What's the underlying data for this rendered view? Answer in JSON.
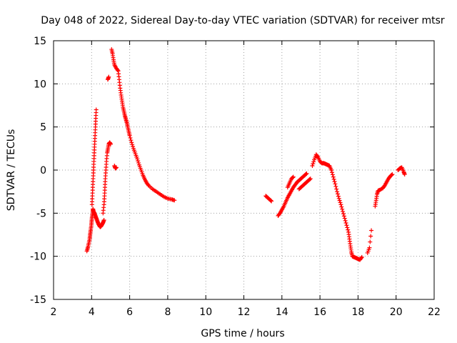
{
  "chart_data": {
    "type": "scatter",
    "title": "Day 048 of 2022, Sidereal Day-to-day VTEC variation (SDTVAR) for receiver mtsr",
    "xlabel": "GPS time / hours",
    "ylabel": "SDTVAR / TECUs",
    "xlim": [
      2,
      22
    ],
    "ylim": [
      -15,
      15
    ],
    "xticks": [
      2,
      4,
      6,
      8,
      10,
      12,
      14,
      16,
      18,
      20,
      22
    ],
    "yticks": [
      -15,
      -10,
      -5,
      0,
      5,
      10,
      15
    ],
    "grid": true,
    "marker": "+",
    "color": "#ff0000",
    "series": [
      {
        "name": "mtsr",
        "segments": [
          [
            [
              3.75,
              -9.4
            ],
            [
              3.8,
              -9.0
            ],
            [
              3.85,
              -8.5
            ],
            [
              3.9,
              -8.0
            ],
            [
              3.92,
              -7.5
            ],
            [
              3.95,
              -7.0
            ],
            [
              3.98,
              -6.5
            ],
            [
              4.0,
              -6.0
            ],
            [
              4.02,
              -5.5
            ],
            [
              4.05,
              -5.0
            ],
            [
              4.07,
              -4.5
            ],
            [
              4.1,
              -4.8
            ],
            [
              4.15,
              -5.0
            ],
            [
              4.2,
              -5.3
            ],
            [
              4.25,
              -5.6
            ],
            [
              4.3,
              -5.9
            ],
            [
              4.35,
              -6.2
            ],
            [
              4.4,
              -6.4
            ],
            [
              4.45,
              -6.6
            ],
            [
              4.5,
              -6.5
            ],
            [
              4.55,
              -6.3
            ],
            [
              4.6,
              -6.1
            ],
            [
              4.65,
              -5.8
            ]
          ],
          [
            [
              4.02,
              -4.0
            ],
            [
              4.04,
              -3.0
            ],
            [
              4.06,
              -2.0
            ],
            [
              4.08,
              -1.0
            ],
            [
              4.1,
              0.0
            ],
            [
              4.12,
              1.0
            ],
            [
              4.14,
              2.0
            ],
            [
              4.16,
              3.0
            ],
            [
              4.18,
              4.0
            ],
            [
              4.2,
              5.0
            ],
            [
              4.22,
              6.0
            ],
            [
              4.24,
              7.0
            ]
          ],
          [
            [
              4.6,
              -5.0
            ],
            [
              4.65,
              -4.0
            ],
            [
              4.68,
              -3.0
            ],
            [
              4.7,
              -2.0
            ],
            [
              4.72,
              -1.0
            ],
            [
              4.75,
              0.0
            ],
            [
              4.78,
              1.0
            ],
            [
              4.82,
              2.0
            ],
            [
              4.86,
              2.5
            ],
            [
              4.9,
              3.0
            ],
            [
              4.95,
              3.2
            ],
            [
              5.0,
              3.0
            ]
          ],
          [
            [
              4.85,
              10.5
            ],
            [
              4.9,
              10.8
            ]
          ],
          [
            [
              5.2,
              0.5
            ],
            [
              5.25,
              0.2
            ],
            [
              5.3,
              0.3
            ]
          ],
          [
            [
              5.05,
              14.0
            ],
            [
              5.1,
              13.5
            ],
            [
              5.15,
              12.8
            ],
            [
              5.2,
              12.2
            ],
            [
              5.3,
              11.8
            ],
            [
              5.4,
              11.5
            ],
            [
              5.45,
              10.5
            ],
            [
              5.5,
              9.5
            ],
            [
              5.55,
              8.7
            ],
            [
              5.6,
              8.0
            ],
            [
              5.65,
              7.3
            ],
            [
              5.7,
              6.8
            ],
            [
              5.75,
              6.3
            ],
            [
              5.8,
              5.9
            ],
            [
              5.85,
              5.5
            ],
            [
              5.9,
              5.0
            ],
            [
              5.95,
              4.5
            ],
            [
              6.0,
              4.0
            ],
            [
              6.1,
              3.2
            ],
            [
              6.2,
              2.5
            ],
            [
              6.3,
              1.9
            ],
            [
              6.4,
              1.3
            ],
            [
              6.5,
              0.6
            ],
            [
              6.6,
              0.0
            ],
            [
              6.7,
              -0.6
            ],
            [
              6.8,
              -1.1
            ],
            [
              6.9,
              -1.5
            ],
            [
              7.0,
              -1.8
            ],
            [
              7.2,
              -2.2
            ],
            [
              7.4,
              -2.5
            ],
            [
              7.6,
              -2.8
            ],
            [
              7.8,
              -3.1
            ],
            [
              8.0,
              -3.3
            ],
            [
              8.2,
              -3.4
            ],
            [
              8.35,
              -3.5
            ]
          ],
          [
            [
              13.15,
              -3.0
            ],
            [
              13.25,
              -3.2
            ],
            [
              13.35,
              -3.4
            ],
            [
              13.45,
              -3.6
            ]
          ],
          [
            [
              13.8,
              -5.3
            ],
            [
              13.9,
              -5.0
            ],
            [
              14.0,
              -4.6
            ],
            [
              14.1,
              -4.2
            ],
            [
              14.2,
              -3.7
            ],
            [
              14.3,
              -3.2
            ],
            [
              14.4,
              -2.8
            ],
            [
              14.5,
              -2.4
            ],
            [
              14.6,
              -2.0
            ],
            [
              14.7,
              -1.7
            ],
            [
              14.8,
              -1.4
            ],
            [
              14.9,
              -1.2
            ],
            [
              15.0,
              -1.0
            ],
            [
              15.1,
              -0.8
            ],
            [
              15.2,
              -0.6
            ],
            [
              15.3,
              -0.4
            ]
          ],
          [
            [
              14.3,
              -2.0
            ],
            [
              14.4,
              -1.5
            ],
            [
              14.5,
              -1.0
            ],
            [
              14.6,
              -0.8
            ]
          ],
          [
            [
              14.9,
              -2.2
            ],
            [
              15.0,
              -2.0
            ],
            [
              15.1,
              -1.8
            ],
            [
              15.2,
              -1.6
            ],
            [
              15.3,
              -1.4
            ],
            [
              15.4,
              -1.2
            ],
            [
              15.5,
              -1.0
            ]
          ],
          [
            [
              15.6,
              0.5
            ],
            [
              15.7,
              1.2
            ],
            [
              15.8,
              1.8
            ],
            [
              15.9,
              1.5
            ],
            [
              16.0,
              1.0
            ],
            [
              16.1,
              0.8
            ],
            [
              16.2,
              0.8
            ],
            [
              16.3,
              0.7
            ],
            [
              16.4,
              0.6
            ],
            [
              16.5,
              0.5
            ],
            [
              16.6,
              0.0
            ],
            [
              16.7,
              -0.8
            ],
            [
              16.8,
              -1.6
            ],
            [
              16.9,
              -2.5
            ],
            [
              17.0,
              -3.3
            ],
            [
              17.1,
              -4.0
            ],
            [
              17.2,
              -4.8
            ],
            [
              17.3,
              -5.6
            ],
            [
              17.4,
              -6.4
            ],
            [
              17.5,
              -7.2
            ],
            [
              17.55,
              -8.0
            ],
            [
              17.6,
              -8.8
            ],
            [
              17.65,
              -9.5
            ],
            [
              17.7,
              -10.0
            ],
            [
              17.8,
              -10.1
            ],
            [
              17.9,
              -10.2
            ],
            [
              18.0,
              -10.3
            ],
            [
              18.1,
              -10.4
            ],
            [
              18.2,
              -10.1
            ]
          ],
          [
            [
              18.5,
              -9.6
            ],
            [
              18.6,
              -9.0
            ],
            [
              18.7,
              -7.0
            ]
          ],
          [
            [
              18.9,
              -4.2
            ],
            [
              18.95,
              -3.5
            ],
            [
              19.0,
              -2.8
            ],
            [
              19.05,
              -2.4
            ],
            [
              19.15,
              -2.3
            ],
            [
              19.3,
              -2.1
            ],
            [
              19.4,
              -1.8
            ],
            [
              19.5,
              -1.4
            ],
            [
              19.6,
              -1.0
            ],
            [
              19.7,
              -0.7
            ],
            [
              19.8,
              -0.5
            ]
          ],
          [
            [
              20.1,
              0.0
            ],
            [
              20.2,
              0.2
            ],
            [
              20.3,
              0.3
            ],
            [
              20.4,
              -0.2
            ],
            [
              20.45,
              -0.5
            ]
          ]
        ]
      }
    ]
  }
}
